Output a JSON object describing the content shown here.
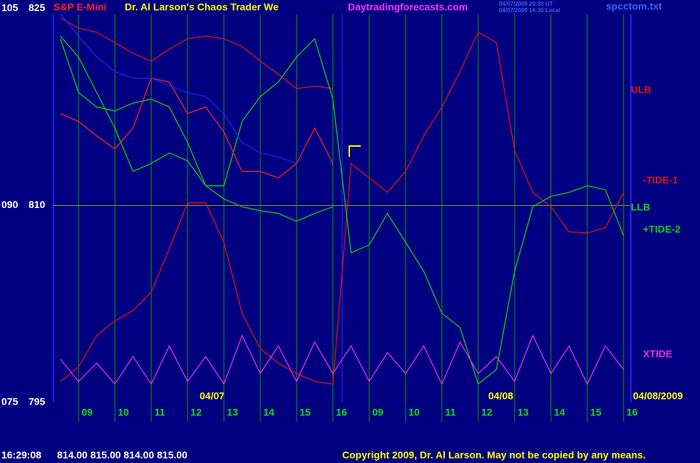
{
  "header": {
    "instrument": "S&P E-Mini",
    "title": "Dr. Al Larson's Chaos Trader We",
    "site": "Daytradingforecasts.com",
    "time_ut": "04/07/2009 20:30 UT",
    "time_local": "04/07/2009 16:30 Local",
    "file": "spcctom.txt"
  },
  "status": {
    "time": "16:29:08",
    "quote": "814.00 815.00 814.00 815.00",
    "copyright": "Copyright 2009, Dr. Al Larson. May not be copied by any means."
  },
  "chart_data": {
    "type": "line",
    "dates": [
      "04/07",
      "04/08",
      "04/08/2009"
    ],
    "x": [
      -0.5,
      0,
      0.5,
      1,
      1.5,
      2,
      2.5,
      3,
      3.5,
      4,
      4.5,
      5,
      5.5,
      6,
      6.5,
      7,
      7.5,
      8,
      8.5,
      9,
      9.5,
      10,
      10.5,
      11,
      11.5,
      12,
      12.5,
      13,
      13.5,
      14,
      14.5,
      15
    ],
    "xlim": [
      -0.69,
      15.2
    ],
    "xticks": [
      {
        "value": 0,
        "label": "09"
      },
      {
        "value": 1,
        "label": "10"
      },
      {
        "value": 2,
        "label": "11"
      },
      {
        "value": 3,
        "label": "12"
      },
      {
        "value": 4,
        "label": "13"
      },
      {
        "value": 5,
        "label": "14"
      },
      {
        "value": 6,
        "label": "15"
      },
      {
        "value": 7,
        "label": "16"
      },
      {
        "value": 8,
        "label": "09"
      },
      {
        "value": 9,
        "label": "10"
      },
      {
        "value": 10,
        "label": "11"
      },
      {
        "value": 11,
        "label": "12"
      },
      {
        "value": 12,
        "label": "13"
      },
      {
        "value": 13,
        "label": "14"
      },
      {
        "value": 14,
        "label": "15"
      },
      {
        "value": 15,
        "label": "16"
      }
    ],
    "ylim": [
      795,
      825
    ],
    "yticks": [
      825,
      810,
      795
    ],
    "y2lim": [
      75,
      105
    ],
    "y2ticks": [
      105,
      {
        "value": 90,
        "label": "090"
      },
      {
        "value": 75,
        "label": "075"
      }
    ],
    "grid": true,
    "series": [
      {
        "name": "ULB",
        "color": "#e01010",
        "values": [
          824.3,
          823.5,
          823.2,
          822.4,
          821.6,
          821.0,
          821.9,
          822.7,
          822.9,
          822.7,
          822.1,
          821.0,
          820.0,
          818.9,
          819.1,
          818.9,
          null,
          null,
          null,
          null,
          null,
          null,
          null,
          null,
          null,
          null,
          null,
          null,
          null,
          null,
          null,
          null
        ]
      },
      {
        "name": "-TIDE-1",
        "color": "#e01010",
        "values": [
          796.6,
          797.7,
          800.1,
          801.2,
          802.0,
          803.4,
          806.7,
          810.2,
          810.2,
          807.2,
          801.8,
          799.1,
          798.0,
          797.2,
          796.6,
          796.4,
          813.2,
          812.1,
          811.0,
          812.6,
          815.3,
          817.5,
          820.2,
          823.2,
          822.4,
          814.2,
          811.0,
          809.9,
          808.0,
          807.9,
          808.3,
          811.0
        ]
      },
      {
        "name": "LLB",
        "color": "#10d010",
        "values": [
          822.9,
          821.3,
          818.6,
          815.9,
          812.6,
          813.2,
          814.0,
          813.4,
          811.5,
          810.5,
          809.9,
          809.6,
          809.4,
          808.8,
          809.4,
          809.9,
          null,
          null,
          null,
          null,
          null,
          null,
          null,
          null,
          null,
          null,
          null,
          null,
          null,
          null,
          null,
          null
        ]
      },
      {
        "name": "+TIDE-2",
        "color": "#10d010",
        "values": [
          822.7,
          818.6,
          817.5,
          817.2,
          817.8,
          818.1,
          817.5,
          814.8,
          811.5,
          811.5,
          816.4,
          818.3,
          819.4,
          821.3,
          822.7,
          818.1,
          806.4,
          807.0,
          809.4,
          807.2,
          805.0,
          801.8,
          800.7,
          796.4,
          797.5,
          805.0,
          809.9,
          810.7,
          811.0,
          811.5,
          811.2,
          807.7
        ]
      },
      {
        "name": "XTIDE",
        "color": "#e030e0",
        "values": [
          798.3,
          796.6,
          798.0,
          796.4,
          798.5,
          796.4,
          799.3,
          796.6,
          798.5,
          796.4,
          800.1,
          797.2,
          799.3,
          796.6,
          799.6,
          797.2,
          799.3,
          796.6,
          798.8,
          797.2,
          799.3,
          796.4,
          799.6,
          797.2,
          798.5,
          796.6,
          800.1,
          797.2,
          799.3,
          796.4,
          799.3,
          797.5
        ]
      },
      {
        "color": "#ff2020",
        "values": [
          817.0,
          816.4,
          815.3,
          814.3,
          815.9,
          819.7,
          819.4,
          817.0,
          817.5,
          815.6,
          812.6,
          812.6,
          812.1,
          813.2,
          815.9,
          813.2,
          null,
          null,
          null,
          null,
          null,
          null,
          null,
          null,
          null,
          null,
          null,
          null,
          null,
          null,
          null,
          null
        ]
      },
      {
        "color": "#2020ff",
        "values": [
          824.6,
          822.9,
          821.3,
          820.2,
          819.7,
          819.7,
          819.1,
          818.6,
          818.3,
          817.0,
          814.8,
          814.0,
          813.7,
          813.2,
          null,
          null,
          null,
          null,
          null,
          null,
          null,
          null,
          null,
          null,
          null,
          null,
          null,
          null,
          null,
          null,
          null,
          null
        ]
      }
    ]
  }
}
